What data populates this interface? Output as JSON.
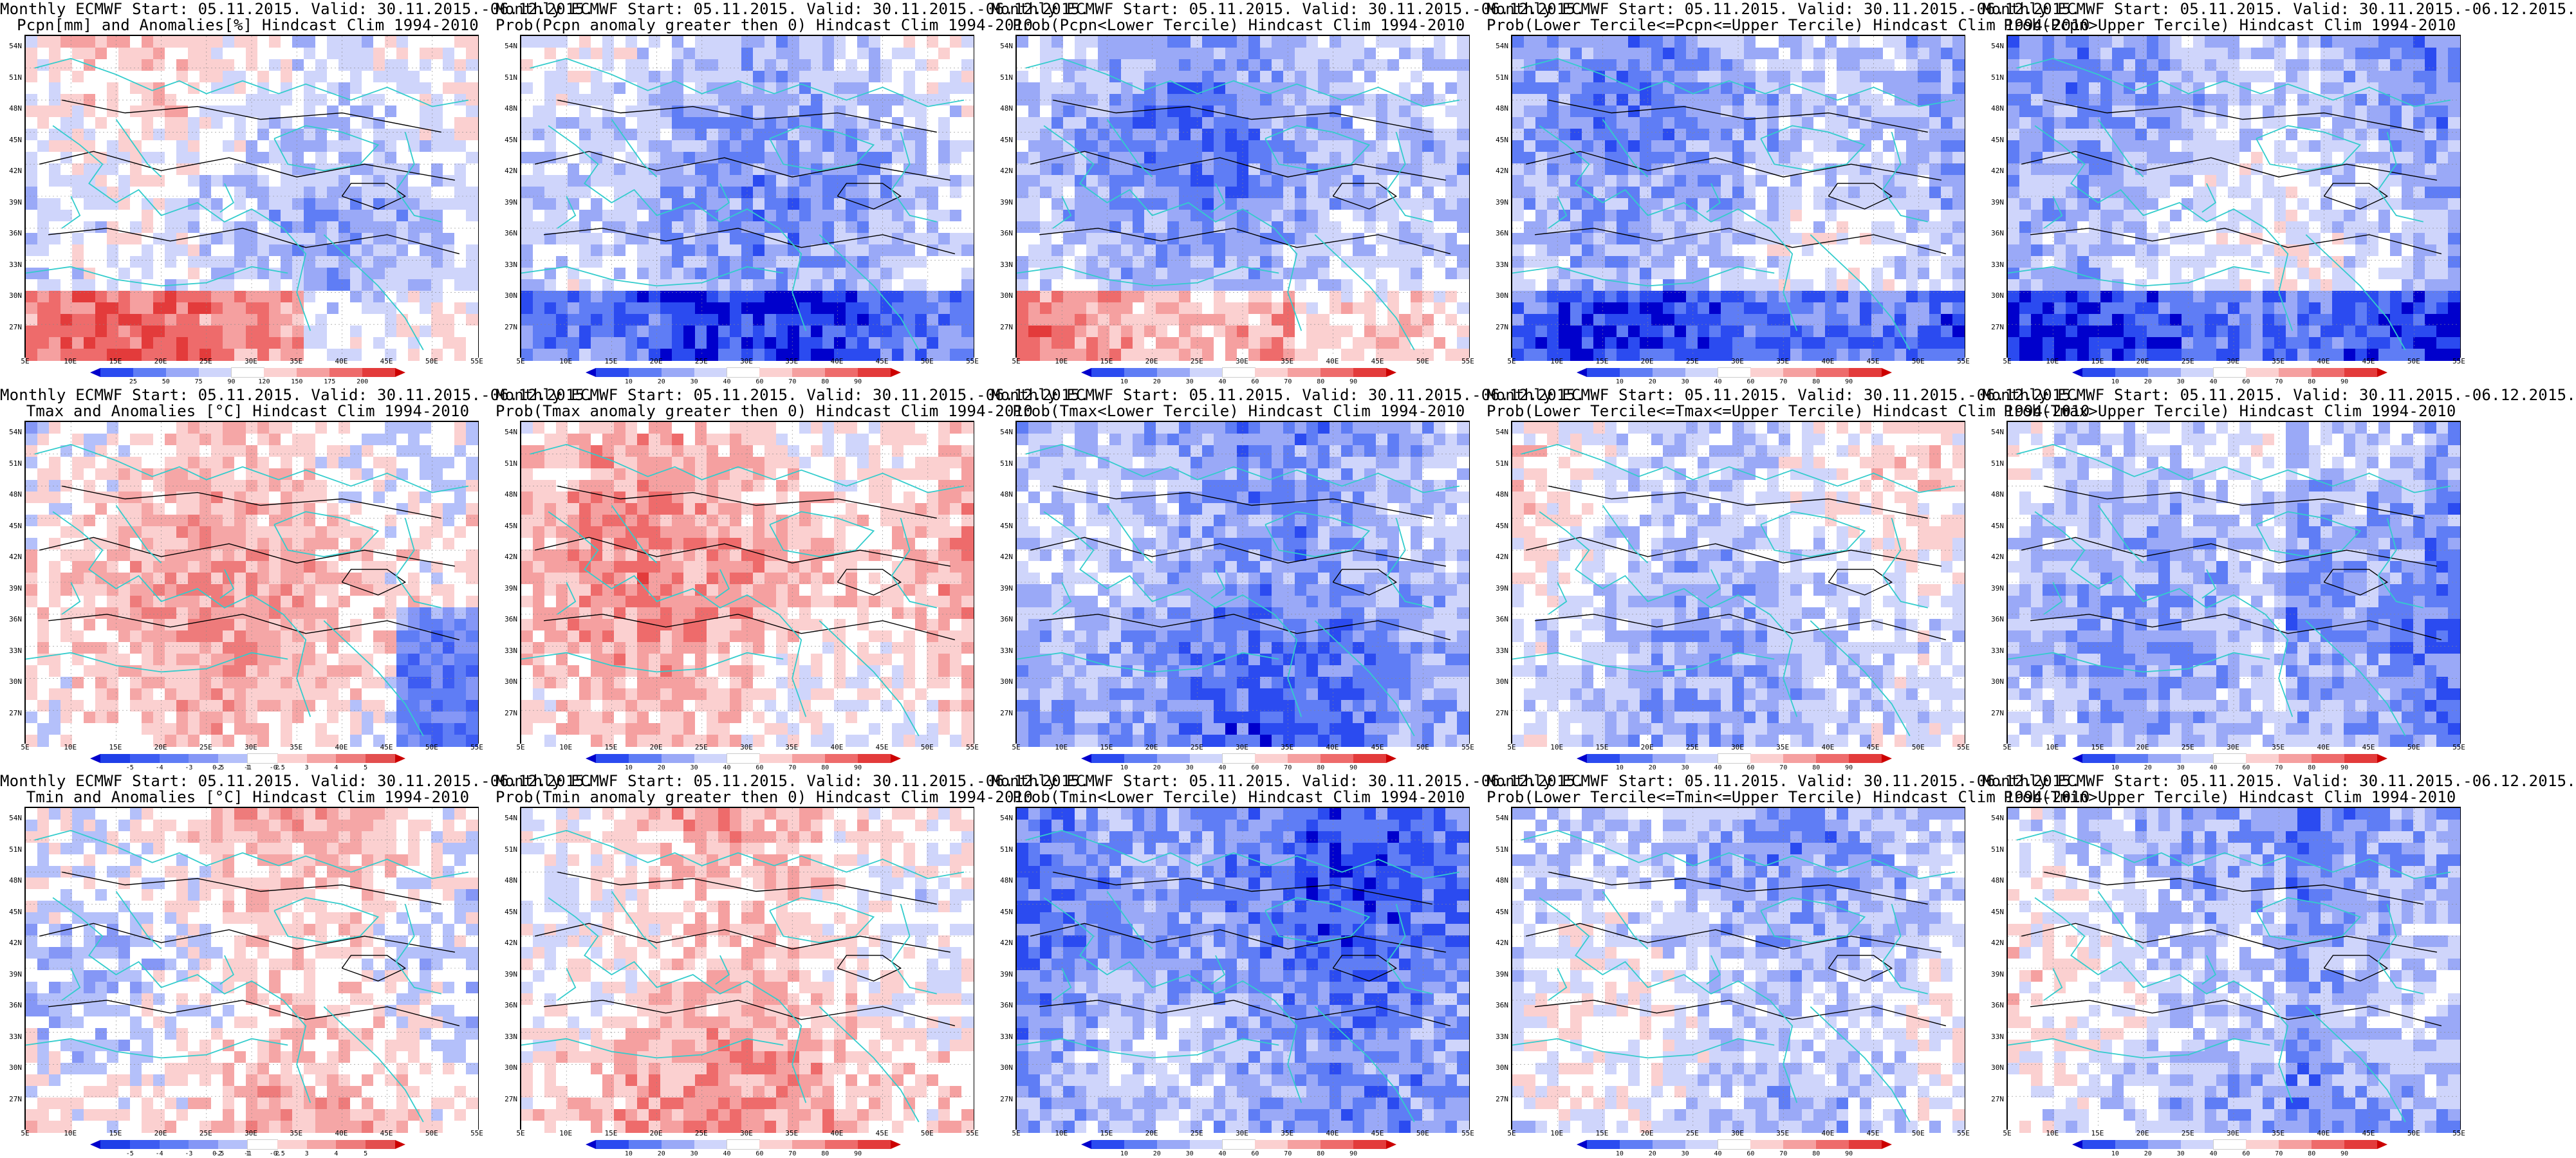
{
  "panels": [
    {
      "l1": "Monthly ECMWF Start: 05.11.2015. Valid: 30.11.2015.-06.12.2015.",
      "l2": "Pcpn[mm] and Anomalies[%] Hindcast Clim 1994-2010",
      "scale": "anom_pcpn"
    },
    {
      "l1": "Monthly ECMWF Start: 05.11.2015. Valid: 30.11.2015.-06.12.2015.",
      "l2": "Prob(Pcpn anomaly greater then 0) Hindcast Clim 1994-2010",
      "scale": "prob"
    },
    {
      "l1": "Monthly ECMWF Start: 05.11.2015. Valid: 30.11.2015.-06.12.2015.",
      "l2": "Prob(Pcpn<Lower Tercile) Hindcast Clim 1994-2010",
      "scale": "prob"
    },
    {
      "l1": "Monthly ECMWF Start: 05.11.2015. Valid: 30.11.2015.-06.12.2015.",
      "l2": "Prob(Lower Tercile<=Pcpn<=Upper Tercile) Hindcast Clim 1994-2010",
      "scale": "prob"
    },
    {
      "l1": "Monthly ECMWF Start: 05.11.2015. Valid: 30.11.2015.-06.12.2015.",
      "l2": "Prob(Pcpn>Upper Tercile) Hindcast Clim 1994-2010",
      "scale": "prob"
    },
    {
      "l1": "Monthly ECMWF Start: 05.11.2015. Valid: 30.11.2015.-06.12.2015.",
      "l2": "Tmax and Anomalies [°C] Hindcast Clim 1994-2010",
      "scale": "anom_temp"
    },
    {
      "l1": "Monthly ECMWF Start: 05.11.2015. Valid: 30.11.2015.-06.12.2015.",
      "l2": "Prob(Tmax anomaly greater then 0) Hindcast Clim 1994-2010",
      "scale": "prob"
    },
    {
      "l1": "Monthly ECMWF Start: 05.11.2015. Valid: 30.11.2015.-06.12.2015.",
      "l2": "Prob(Tmax<Lower Tercile) Hindcast Clim 1994-2010",
      "scale": "prob"
    },
    {
      "l1": "Monthly ECMWF Start: 05.11.2015. Valid: 30.11.2015.-06.12.2015.",
      "l2": "Prob(Lower Tercile<=Tmax<=Upper Tercile) Hindcast Clim 1994-2010",
      "scale": "prob"
    },
    {
      "l1": "Monthly ECMWF Start: 05.11.2015. Valid: 30.11.2015.-06.12.2015.",
      "l2": "Prob(Tmax>Upper Tercile) Hindcast Clim 1994-2010",
      "scale": "prob"
    },
    {
      "l1": "Monthly ECMWF Start: 05.11.2015. Valid: 30.11.2015.-06.12.2015.",
      "l2": "Tmin and Anomalies [°C] Hindcast Clim 1994-2010",
      "scale": "anom_temp"
    },
    {
      "l1": "Monthly ECMWF Start: 05.11.2015. Valid: 30.11.2015.-06.12.2015.",
      "l2": "Prob(Tmin anomaly greater then 0) Hindcast Clim 1994-2010",
      "scale": "prob"
    },
    {
      "l1": "Monthly ECMWF Start: 05.11.2015. Valid: 30.11.2015.-06.12.2015.",
      "l2": "Prob(Tmin<Lower Tercile) Hindcast Clim 1994-2010",
      "scale": "prob"
    },
    {
      "l1": "Monthly ECMWF Start: 05.11.2015. Valid: 30.11.2015.-06.12.2015.",
      "l2": "Prob(Lower Tercile<=Tmin<=Upper Tercile) Hindcast Clim 1994-2010",
      "scale": "prob"
    },
    {
      "l1": "Monthly ECMWF Start: 05.11.2015. Valid: 30.11.2015.-06.12.2015.",
      "l2": "Prob(Tmin>Upper Tercile) Hindcast Clim 1994-2010",
      "scale": "prob"
    }
  ],
  "lat_labels": [
    "54N",
    "51N",
    "48N",
    "45N",
    "42N",
    "39N",
    "36N",
    "33N",
    "30N",
    "27N"
  ],
  "lon_labels": [
    "5E",
    "10E",
    "15E",
    "20E",
    "25E",
    "30E",
    "35E",
    "40E",
    "45E",
    "50E",
    "55E"
  ],
  "scales": {
    "prob": {
      "labels": [
        "10",
        "20",
        "30",
        "40",
        "60",
        "70",
        "80",
        "90"
      ],
      "colors": [
        "#0000cc",
        "#2b4bf0",
        "#5f7df5",
        "#9aa9f7",
        "#cfd5fb",
        "#ffffff",
        "#fbd0d0",
        "#f5a0a0",
        "#ee6b6b",
        "#e33b3b",
        "#cc0000"
      ]
    },
    "anom_pcpn": {
      "labels": [
        "25",
        "50",
        "75",
        "90",
        "120",
        "150",
        "175",
        "200"
      ],
      "colors": [
        "#0000cc",
        "#2b4bf0",
        "#5f7df5",
        "#9aa9f7",
        "#cfd5fb",
        "#ffffff",
        "#fbd0d0",
        "#f5a0a0",
        "#ee6b6b",
        "#e33b3b",
        "#cc0000"
      ]
    },
    "anom_temp": {
      "labels": [
        "-5",
        "-4",
        "-3",
        "-2",
        "-1",
        "-0.5",
        "0.5",
        "1",
        "2",
        "3",
        "4",
        "5"
      ],
      "colors": [
        "#0000cc",
        "#1f3fe8",
        "#3d5cf2",
        "#5f7df5",
        "#8597f6",
        "#b4c0fa",
        "#ffffff",
        "#fbd0d0",
        "#f5a6a6",
        "#ee7b7b",
        "#e34f4f",
        "#cc0000"
      ]
    }
  },
  "palette": {
    "coast": "#33cccc",
    "contour": "#000000",
    "blue_deep": "#0000cc",
    "red_deep": "#cc0000"
  }
}
